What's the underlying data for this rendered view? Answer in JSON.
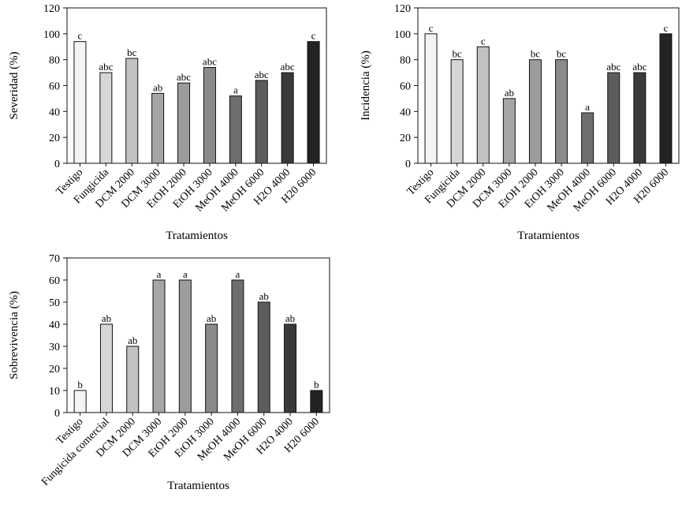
{
  "chart_data": [
    {
      "type": "bar",
      "ylabel": "Severidad (%)",
      "xlabel": "Tratamientos",
      "ylim": [
        0,
        120
      ],
      "yticks": [
        0,
        20,
        40,
        60,
        80,
        100,
        120
      ],
      "categories": [
        "Testigo",
        "Fungicida",
        "DCM 2000",
        "DCM 3000",
        "EtOH 2000",
        "EtOH 3000",
        "MeOH 4000",
        "MeOH 6000",
        "H2O 4000",
        "H20 6000"
      ],
      "values": [
        94,
        70,
        81,
        54,
        62,
        74,
        52,
        64,
        70,
        94
      ],
      "letters": [
        "c",
        "abc",
        "bc",
        "ab",
        "abc",
        "abc",
        "a",
        "abc",
        "abc",
        "c"
      ],
      "colors": [
        "#f4f4f4",
        "#d6d6d6",
        "#c2c2c2",
        "#a6a6a6",
        "#9c9c9c",
        "#8a8a8a",
        "#6e6e6e",
        "#5c5c5c",
        "#3a3a3a",
        "#232323"
      ]
    },
    {
      "type": "bar",
      "ylabel": "Incidencia (%)",
      "xlabel": "Tratamientos",
      "ylim": [
        0,
        120
      ],
      "yticks": [
        0,
        20,
        40,
        60,
        80,
        100,
        120
      ],
      "categories": [
        "Testigo",
        "Fungicida",
        "DCM 2000",
        "DCM 3000",
        "EtOH 2000",
        "EtOH 3000",
        "MeOH 4000",
        "MeOH 6000",
        "H2O 4000",
        "H20 6000"
      ],
      "values": [
        100,
        80,
        90,
        50,
        80,
        80,
        39,
        70,
        70,
        100
      ],
      "letters": [
        "c",
        "bc",
        "c",
        "ab",
        "bc",
        "bc",
        "a",
        "abc",
        "abc",
        "c"
      ],
      "colors": [
        "#f4f4f4",
        "#d6d6d6",
        "#c2c2c2",
        "#a6a6a6",
        "#9c9c9c",
        "#8a8a8a",
        "#6e6e6e",
        "#5c5c5c",
        "#3a3a3a",
        "#232323"
      ]
    },
    {
      "type": "bar",
      "ylabel": "Sobrevivencia (%)",
      "xlabel": "Tratamientos",
      "ylim": [
        0,
        70
      ],
      "yticks": [
        0,
        10,
        20,
        30,
        40,
        50,
        60,
        70
      ],
      "categories": [
        "Testigo",
        "Fungicida comercial",
        "DCM 2000",
        "DCM 3000",
        "EtOH 2000",
        "EtOH 3000",
        "MeOH 4000",
        "MeOH 6000",
        "H2O 4000",
        "H20 6000"
      ],
      "values": [
        10,
        40,
        30,
        60,
        60,
        40,
        60,
        50,
        40,
        10
      ],
      "letters": [
        "b",
        "ab",
        "ab",
        "a",
        "a",
        "ab",
        "a",
        "ab",
        "ab",
        "b"
      ],
      "colors": [
        "#f4f4f4",
        "#d6d6d6",
        "#c2c2c2",
        "#a6a6a6",
        "#9c9c9c",
        "#8a8a8a",
        "#6e6e6e",
        "#5c5c5c",
        "#3a3a3a",
        "#232323"
      ]
    }
  ]
}
